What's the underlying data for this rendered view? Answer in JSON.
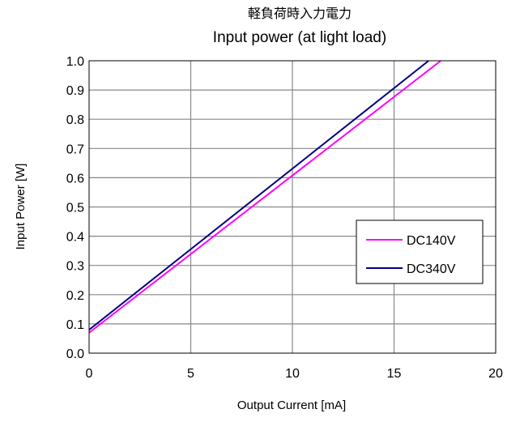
{
  "chart_data": {
    "type": "line",
    "title_jp": "軽負荷時入力電力",
    "title": "Input power (at light load)",
    "xlabel": "Output Current [mA]",
    "ylabel": "Input Power [W]",
    "xlim": [
      0,
      20
    ],
    "ylim": [
      0,
      1.0
    ],
    "x_ticks": [
      "0",
      "5",
      "10",
      "15",
      "20"
    ],
    "y_ticks": [
      "0.0",
      "0.1",
      "0.2",
      "0.3",
      "0.4",
      "0.5",
      "0.6",
      "0.7",
      "0.8",
      "0.9",
      "1.0"
    ],
    "grid": true,
    "legend_position": "right",
    "series": [
      {
        "name": "DC140V",
        "color": "#ff00ff",
        "x": [
          0,
          17.3
        ],
        "y": [
          0.07,
          1.0
        ]
      },
      {
        "name": "DC340V",
        "color": "#000080",
        "x": [
          0,
          16.7
        ],
        "y": [
          0.08,
          1.0
        ]
      }
    ]
  }
}
